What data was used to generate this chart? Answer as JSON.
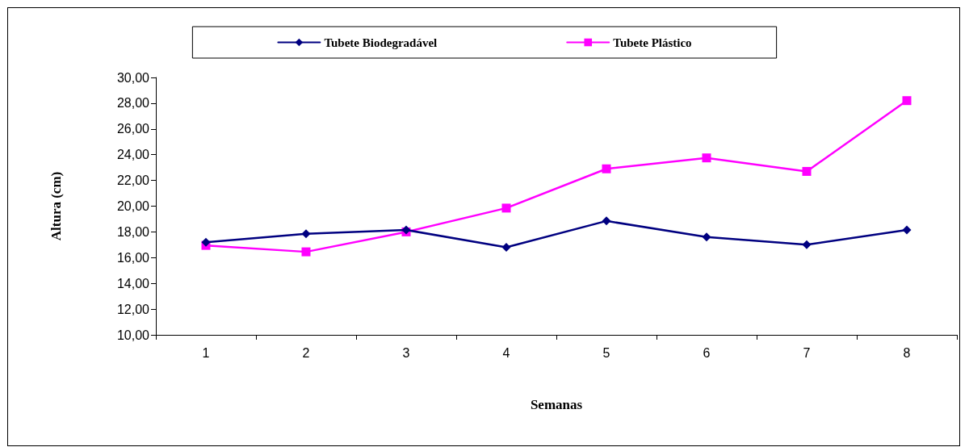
{
  "chart_data": {
    "type": "line",
    "xlabel": "Semanas",
    "ylabel": "Altura (cm)",
    "categories": [
      "1",
      "2",
      "3",
      "4",
      "5",
      "6",
      "7",
      "8"
    ],
    "series": [
      {
        "name": "Tubete Biodegradável",
        "color": "#000080",
        "marker": "diamond",
        "values": [
          17.2,
          17.85,
          18.15,
          16.8,
          18.85,
          17.6,
          17.0,
          18.15
        ]
      },
      {
        "name": "Tubete Plástico",
        "color": "#ff00ff",
        "marker": "square",
        "values": [
          16.95,
          16.45,
          18.0,
          19.85,
          22.9,
          23.75,
          22.7,
          28.2
        ]
      }
    ],
    "ylim": [
      10,
      30
    ],
    "yticks": [
      {
        "value": 10,
        "label": "10,00"
      },
      {
        "value": 12,
        "label": "12,00"
      },
      {
        "value": 14,
        "label": "14,00"
      },
      {
        "value": 16,
        "label": "16,00"
      },
      {
        "value": 18,
        "label": "18,00"
      },
      {
        "value": 20,
        "label": "20,00"
      },
      {
        "value": 22,
        "label": "22,00"
      },
      {
        "value": 24,
        "label": "24,00"
      },
      {
        "value": 26,
        "label": "26,00"
      },
      {
        "value": 28,
        "label": "28,00"
      },
      {
        "value": 30,
        "label": "30,00"
      }
    ],
    "grid": false,
    "legend": "top",
    "line_style": "solid"
  }
}
